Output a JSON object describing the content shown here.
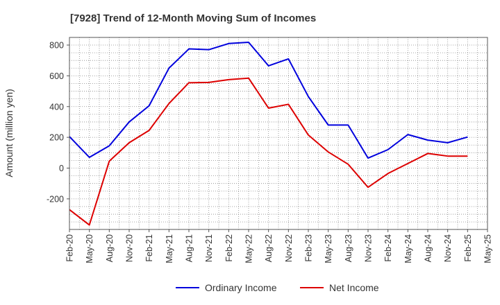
{
  "chart_data": {
    "type": "line",
    "title": "[7928]  Trend of 12-Month Moving Sum of Incomes",
    "xlabel": "",
    "ylabel": "Amount (million yen)",
    "ylim": [
      -400,
      850
    ],
    "yticks": [
      800,
      600,
      400,
      200,
      0,
      -200
    ],
    "ytick_labels": [
      "800",
      "600",
      "400",
      "200",
      "0",
      "-200"
    ],
    "grid": true,
    "legend_position": "bottom-center",
    "x_tick_labels": [
      "Feb-20",
      "May-20",
      "Aug-20",
      "Nov-20",
      "Feb-21",
      "May-21",
      "Aug-21",
      "Nov-21",
      "Feb-22",
      "May-22",
      "Aug-22",
      "Nov-22",
      "Feb-23",
      "May-23",
      "Aug-23",
      "Nov-23",
      "Feb-24",
      "May-24",
      "Aug-24",
      "Nov-24",
      "Feb-25",
      "May-25"
    ],
    "series": [
      {
        "name": "Ordinary Income",
        "color": "#0000dd",
        "values": [
          205,
          70,
          145,
          300,
          405,
          650,
          775,
          770,
          810,
          818,
          665,
          710,
          465,
          280,
          280,
          65,
          120,
          218,
          182,
          165,
          202,
          null
        ]
      },
      {
        "name": "Net Income",
        "color": "#dd0000",
        "values": [
          -270,
          -370,
          45,
          165,
          245,
          420,
          555,
          557,
          575,
          585,
          390,
          415,
          215,
          105,
          25,
          -125,
          -35,
          30,
          95,
          78,
          78,
          null
        ]
      }
    ]
  }
}
